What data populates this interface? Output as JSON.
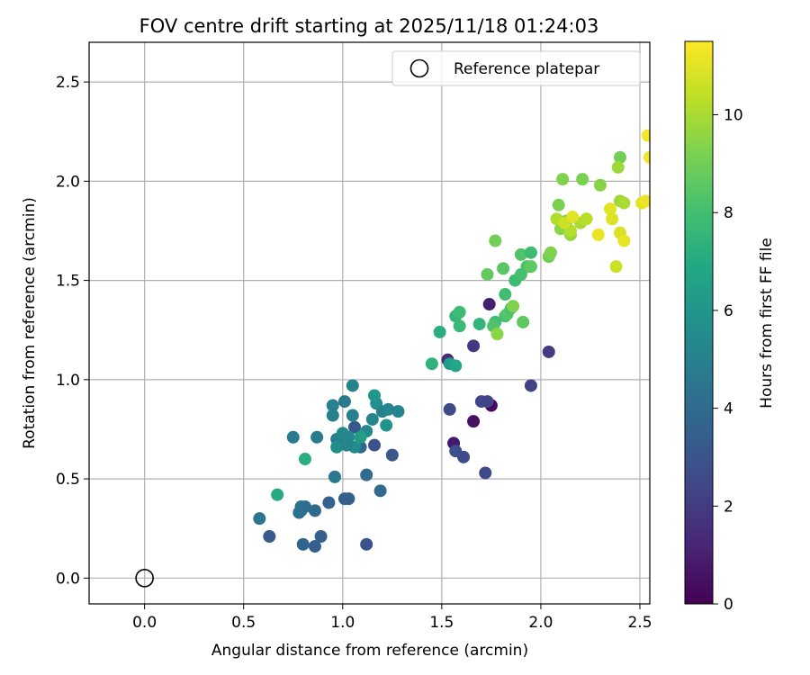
{
  "chart_data": {
    "type": "scatter",
    "title": "FOV centre drift starting at 2025/11/18 01:24:03",
    "xlabel": "Angular distance from reference (arcmin)",
    "ylabel": "Rotation from reference (arcmin)",
    "xlim": [
      -0.28,
      2.55
    ],
    "ylim": [
      -0.13,
      2.7
    ],
    "xticks": [
      "0.0",
      "0.5",
      "1.0",
      "1.5",
      "2.0",
      "2.5"
    ],
    "yticks": [
      "0.0",
      "0.5",
      "1.0",
      "1.5",
      "2.0",
      "2.5"
    ],
    "grid": true,
    "legend": {
      "placement": "top-right",
      "entries": [
        "Reference platepar"
      ]
    },
    "reference_point": {
      "x": 0.0,
      "y": 0.0,
      "marker": "hollow-circle"
    },
    "colorbar": {
      "label": "Hours from first FF file",
      "range": [
        0,
        11.5
      ],
      "ticks": [
        "0",
        "2",
        "4",
        "6",
        "8",
        "10"
      ],
      "colormap": "viridis"
    },
    "points": [
      {
        "x": 1.53,
        "y": 1.1,
        "t": 1.5
      },
      {
        "x": 1.74,
        "y": 1.38,
        "t": 1.0
      },
      {
        "x": 1.75,
        "y": 0.87,
        "t": 0.3
      },
      {
        "x": 1.66,
        "y": 0.79,
        "t": 0.5
      },
      {
        "x": 1.56,
        "y": 0.68,
        "t": 0.8
      },
      {
        "x": 1.66,
        "y": 1.17,
        "t": 1.8
      },
      {
        "x": 1.54,
        "y": 0.85,
        "t": 2.5
      },
      {
        "x": 1.7,
        "y": 0.89,
        "t": 2.4
      },
      {
        "x": 1.73,
        "y": 0.89,
        "t": 2.3
      },
      {
        "x": 1.57,
        "y": 0.64,
        "t": 2.8
      },
      {
        "x": 1.61,
        "y": 0.61,
        "t": 2.6
      },
      {
        "x": 1.72,
        "y": 0.53,
        "t": 2.5
      },
      {
        "x": 1.95,
        "y": 0.97,
        "t": 2.2
      },
      {
        "x": 2.04,
        "y": 1.14,
        "t": 2.0
      },
      {
        "x": 1.12,
        "y": 0.17,
        "t": 3.0
      },
      {
        "x": 1.16,
        "y": 0.67,
        "t": 2.9
      },
      {
        "x": 1.25,
        "y": 0.62,
        "t": 3.1
      },
      {
        "x": 0.63,
        "y": 0.21,
        "t": 3.3
      },
      {
        "x": 0.8,
        "y": 0.17,
        "t": 3.7
      },
      {
        "x": 0.86,
        "y": 0.16,
        "t": 3.5
      },
      {
        "x": 0.89,
        "y": 0.21,
        "t": 3.6
      },
      {
        "x": 0.93,
        "y": 0.38,
        "t": 3.6
      },
      {
        "x": 1.01,
        "y": 0.4,
        "t": 3.4
      },
      {
        "x": 1.03,
        "y": 0.4,
        "t": 3.5
      },
      {
        "x": 1.06,
        "y": 0.76,
        "t": 3.2
      },
      {
        "x": 1.0,
        "y": 0.7,
        "t": 3.6
      },
      {
        "x": 1.09,
        "y": 0.66,
        "t": 3.8
      },
      {
        "x": 1.12,
        "y": 0.52,
        "t": 4.0
      },
      {
        "x": 1.19,
        "y": 0.44,
        "t": 4.0
      },
      {
        "x": 0.58,
        "y": 0.3,
        "t": 4.5
      },
      {
        "x": 0.79,
        "y": 0.34,
        "t": 4.2
      },
      {
        "x": 0.79,
        "y": 0.36,
        "t": 4.4
      },
      {
        "x": 0.81,
        "y": 0.36,
        "t": 4.2
      },
      {
        "x": 0.86,
        "y": 0.34,
        "t": 4.0
      },
      {
        "x": 0.78,
        "y": 0.33,
        "t": 4.3
      },
      {
        "x": 0.96,
        "y": 0.51,
        "t": 4.6
      },
      {
        "x": 0.75,
        "y": 0.71,
        "t": 4.7
      },
      {
        "x": 0.87,
        "y": 0.71,
        "t": 4.8
      },
      {
        "x": 0.95,
        "y": 0.87,
        "t": 4.9
      },
      {
        "x": 0.95,
        "y": 0.82,
        "t": 5.0
      },
      {
        "x": 1.01,
        "y": 0.89,
        "t": 4.7
      },
      {
        "x": 1.05,
        "y": 0.97,
        "t": 5.2
      },
      {
        "x": 0.97,
        "y": 0.7,
        "t": 5.0
      },
      {
        "x": 1.05,
        "y": 0.82,
        "t": 4.9
      },
      {
        "x": 1.0,
        "y": 0.73,
        "t": 5.4
      },
      {
        "x": 1.03,
        "y": 0.71,
        "t": 5.3
      },
      {
        "x": 1.06,
        "y": 0.66,
        "t": 5.5
      },
      {
        "x": 0.97,
        "y": 0.66,
        "t": 5.6
      },
      {
        "x": 1.02,
        "y": 0.67,
        "t": 5.2
      },
      {
        "x": 1.15,
        "y": 0.8,
        "t": 5.1
      },
      {
        "x": 1.12,
        "y": 0.74,
        "t": 5.4
      },
      {
        "x": 1.17,
        "y": 0.88,
        "t": 5.7
      },
      {
        "x": 1.2,
        "y": 0.84,
        "t": 5.0
      },
      {
        "x": 1.23,
        "y": 0.85,
        "t": 5.3
      },
      {
        "x": 1.28,
        "y": 0.84,
        "t": 5.2
      },
      {
        "x": 1.22,
        "y": 0.77,
        "t": 5.8
      },
      {
        "x": 1.16,
        "y": 0.92,
        "t": 6.0
      },
      {
        "x": 1.09,
        "y": 0.71,
        "t": 6.4
      },
      {
        "x": 0.67,
        "y": 0.42,
        "t": 7.0
      },
      {
        "x": 0.81,
        "y": 0.6,
        "t": 7.2
      },
      {
        "x": 1.54,
        "y": 1.08,
        "t": 6.3
      },
      {
        "x": 1.57,
        "y": 1.07,
        "t": 6.8
      },
      {
        "x": 1.45,
        "y": 1.08,
        "t": 7.4
      },
      {
        "x": 1.49,
        "y": 1.24,
        "t": 7.2
      },
      {
        "x": 1.57,
        "y": 1.32,
        "t": 7.6
      },
      {
        "x": 1.59,
        "y": 1.34,
        "t": 7.8
      },
      {
        "x": 1.59,
        "y": 1.27,
        "t": 7.7
      },
      {
        "x": 1.69,
        "y": 1.28,
        "t": 7.5
      },
      {
        "x": 1.77,
        "y": 1.29,
        "t": 7.9
      },
      {
        "x": 1.76,
        "y": 1.27,
        "t": 8.3
      },
      {
        "x": 1.82,
        "y": 1.32,
        "t": 8.1
      },
      {
        "x": 1.83,
        "y": 1.33,
        "t": 8.4
      },
      {
        "x": 1.85,
        "y": 1.36,
        "t": 8.0
      },
      {
        "x": 1.82,
        "y": 1.43,
        "t": 7.9
      },
      {
        "x": 1.87,
        "y": 1.5,
        "t": 7.8
      },
      {
        "x": 1.9,
        "y": 1.53,
        "t": 8.1
      },
      {
        "x": 1.93,
        "y": 1.57,
        "t": 8.2
      },
      {
        "x": 1.9,
        "y": 1.63,
        "t": 8.3
      },
      {
        "x": 1.95,
        "y": 1.64,
        "t": 7.8
      },
      {
        "x": 1.91,
        "y": 1.29,
        "t": 8.6
      },
      {
        "x": 1.86,
        "y": 1.37,
        "t": 9.3
      },
      {
        "x": 1.78,
        "y": 1.23,
        "t": 9.5
      },
      {
        "x": 1.77,
        "y": 1.7,
        "t": 9.0
      },
      {
        "x": 1.73,
        "y": 1.53,
        "t": 8.7
      },
      {
        "x": 1.81,
        "y": 1.56,
        "t": 8.5
      },
      {
        "x": 1.95,
        "y": 1.57,
        "t": 8.6
      },
      {
        "x": 2.04,
        "y": 1.62,
        "t": 9.0
      },
      {
        "x": 2.05,
        "y": 1.64,
        "t": 9.3
      },
      {
        "x": 2.09,
        "y": 1.88,
        "t": 9.2
      },
      {
        "x": 2.11,
        "y": 2.01,
        "t": 9.3
      },
      {
        "x": 2.21,
        "y": 2.01,
        "t": 9.2
      },
      {
        "x": 2.3,
        "y": 1.98,
        "t": 9.4
      },
      {
        "x": 2.4,
        "y": 2.12,
        "t": 9.0
      },
      {
        "x": 2.39,
        "y": 2.07,
        "t": 9.8
      },
      {
        "x": 2.13,
        "y": 1.8,
        "t": 8.8
      },
      {
        "x": 2.1,
        "y": 1.76,
        "t": 9.5
      },
      {
        "x": 2.15,
        "y": 1.73,
        "t": 9.7
      },
      {
        "x": 2.2,
        "y": 1.79,
        "t": 10.0
      },
      {
        "x": 2.15,
        "y": 1.75,
        "t": 10.2
      },
      {
        "x": 2.08,
        "y": 1.81,
        "t": 10.1
      },
      {
        "x": 2.23,
        "y": 1.81,
        "t": 10.3
      },
      {
        "x": 2.4,
        "y": 1.9,
        "t": 9.8
      },
      {
        "x": 2.42,
        "y": 1.89,
        "t": 10.0
      },
      {
        "x": 2.12,
        "y": 1.79,
        "t": 10.6
      },
      {
        "x": 2.16,
        "y": 1.82,
        "t": 11.0
      },
      {
        "x": 2.29,
        "y": 1.73,
        "t": 11.2
      },
      {
        "x": 2.35,
        "y": 1.86,
        "t": 11.0
      },
      {
        "x": 2.36,
        "y": 1.81,
        "t": 10.9
      },
      {
        "x": 2.4,
        "y": 1.74,
        "t": 10.8
      },
      {
        "x": 2.42,
        "y": 1.7,
        "t": 11.1
      },
      {
        "x": 2.38,
        "y": 1.57,
        "t": 10.6
      },
      {
        "x": 2.51,
        "y": 1.89,
        "t": 11.0
      },
      {
        "x": 2.53,
        "y": 1.9,
        "t": 11.2
      },
      {
        "x": 2.54,
        "y": 2.23,
        "t": 11.4
      },
      {
        "x": 2.55,
        "y": 2.12,
        "t": 11.3
      }
    ]
  }
}
